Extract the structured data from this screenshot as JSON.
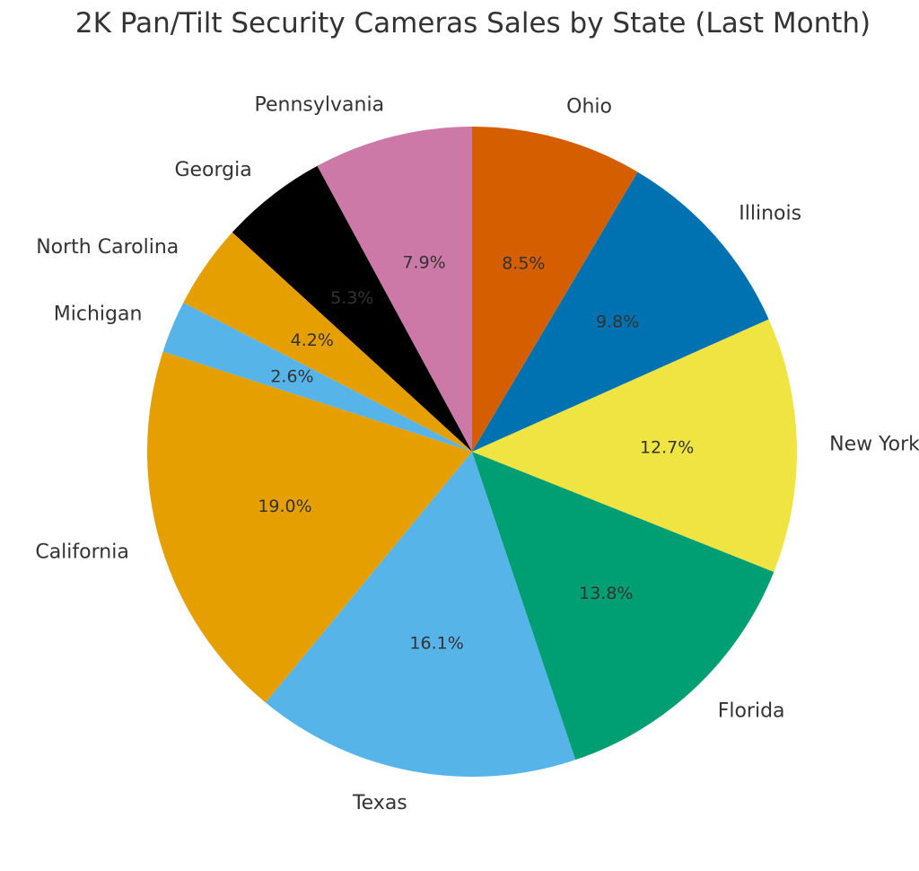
{
  "chart_data": {
    "type": "pie",
    "title": "2K Pan/Tilt Security Cameras Sales by State (Last Month)",
    "start_angle_deg": 90,
    "direction": "counterclockwise",
    "slices": [
      {
        "label": "Pennsylvania",
        "value": 7.9,
        "pct_label": "7.9%",
        "color": "#CC79A7"
      },
      {
        "label": "Georgia",
        "value": 5.3,
        "pct_label": "5.3%",
        "color": "#000000"
      },
      {
        "label": "North Carolina",
        "value": 4.2,
        "pct_label": "4.2%",
        "color": "#E69F00"
      },
      {
        "label": "Michigan",
        "value": 2.6,
        "pct_label": "2.6%",
        "color": "#56B4E9"
      },
      {
        "label": "California",
        "value": 19.0,
        "pct_label": "19.0%",
        "color": "#E69F00"
      },
      {
        "label": "Texas",
        "value": 16.1,
        "pct_label": "16.1%",
        "color": "#56B4E9"
      },
      {
        "label": "Florida",
        "value": 13.8,
        "pct_label": "13.8%",
        "color": "#009E73"
      },
      {
        "label": "New York",
        "value": 12.7,
        "pct_label": "12.7%",
        "color": "#F0E442"
      },
      {
        "label": "Illinois",
        "value": 9.8,
        "pct_label": "9.8%",
        "color": "#0072B2"
      },
      {
        "label": "Ohio",
        "value": 8.5,
        "pct_label": "8.5%",
        "color": "#D55E00"
      }
    ]
  }
}
